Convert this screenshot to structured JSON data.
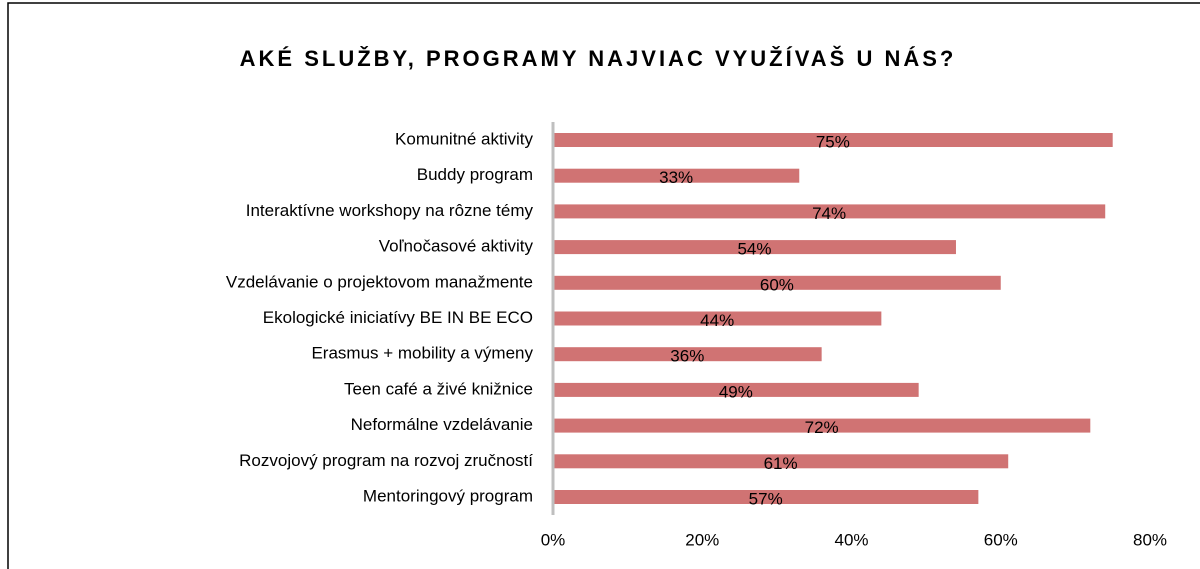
{
  "chart_data": {
    "type": "bar",
    "orientation": "horizontal",
    "title": "AKÉ SLUŽBY, PROGRAMY NAJVIAC VYUŽÍVAŠ U NÁS?",
    "categories": [
      "Komunitné aktivity",
      "Buddy program",
      "Interaktívne workshopy na rôzne témy",
      "Voľnočasové aktivity",
      "Vzdelávanie o projektovom manažmente",
      "Ekologické iniciatívy BE IN BE ECO",
      "Erasmus + mobility a výmeny",
      "Teen café a živé knižnice",
      "Neformálne vzdelávanie",
      "Rozvojový program na rozvoj zručností",
      "Mentoringový program"
    ],
    "values": [
      75,
      33,
      74,
      54,
      60,
      44,
      36,
      49,
      72,
      61,
      57
    ],
    "value_labels": [
      "75%",
      "33%",
      "74%",
      "54%",
      "60%",
      "44%",
      "36%",
      "49%",
      "72%",
      "61%",
      "57%"
    ],
    "color": "#d07373",
    "xlim": [
      0,
      80
    ],
    "xticks": [
      {
        "value": 0,
        "label": "0%"
      },
      {
        "value": 20,
        "label": "20%"
      },
      {
        "value": 40,
        "label": "40%"
      },
      {
        "value": 60,
        "label": "60%"
      },
      {
        "value": 80,
        "label": "80%"
      }
    ]
  }
}
